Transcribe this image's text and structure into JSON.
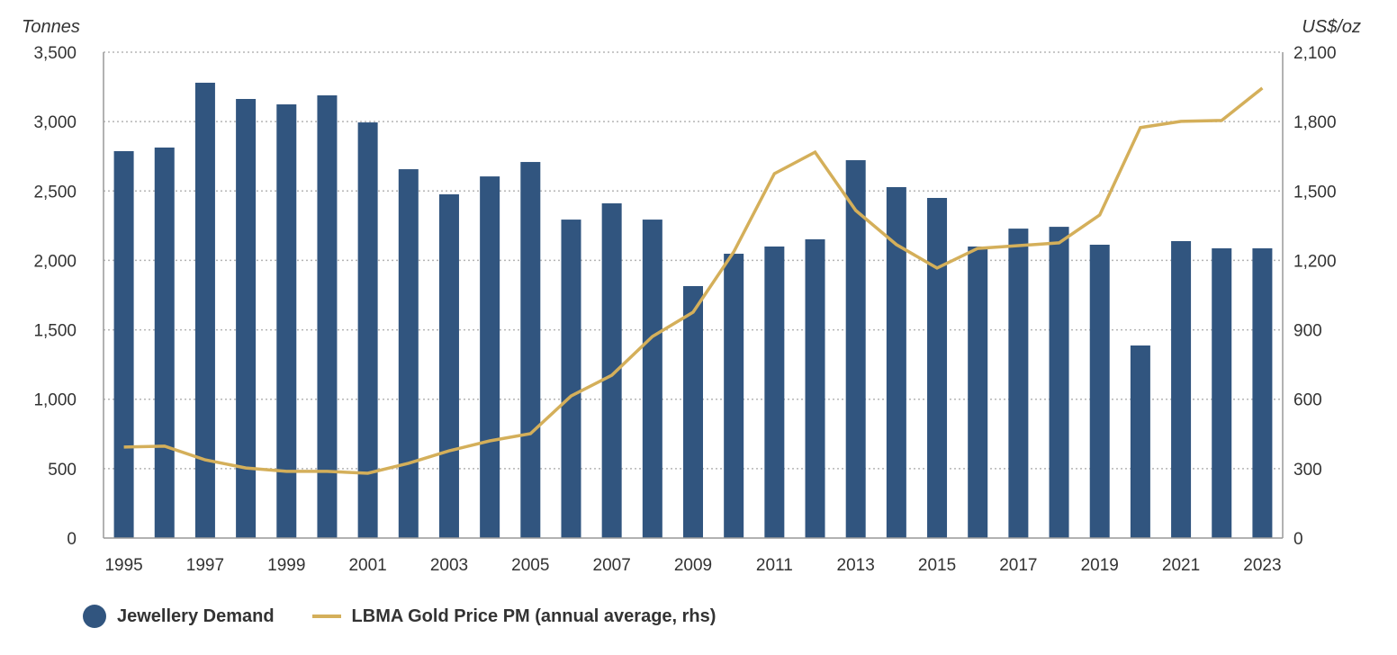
{
  "chart_data": {
    "type": "bar",
    "title": "",
    "x": [
      1995,
      1996,
      1997,
      1998,
      1999,
      2000,
      2001,
      2002,
      2003,
      2004,
      2005,
      2006,
      2007,
      2008,
      2009,
      2010,
      2011,
      2012,
      2013,
      2014,
      2015,
      2016,
      2017,
      2018,
      2019,
      2020,
      2021,
      2022,
      2023
    ],
    "x_tick_labels": [
      "1995",
      "1997",
      "1999",
      "2001",
      "2003",
      "2005",
      "2007",
      "2009",
      "2011",
      "2013",
      "2015",
      "2017",
      "2019",
      "2021",
      "2023"
    ],
    "ylabel_left": "Tonnes",
    "ylabel_right": "US$/oz",
    "ylim_left": [
      0,
      3500
    ],
    "ylim_right": [
      0,
      2100
    ],
    "yticks_left": [
      "0",
      "500",
      "1,000",
      "1,500",
      "2,000",
      "2,500",
      "3,000",
      "3,500"
    ],
    "yticks_right": [
      "0",
      "300",
      "600",
      "900",
      "1,200",
      "1,500",
      "1,800",
      "2,100"
    ],
    "grid": "horizontal dotted",
    "legend_position": "bottom-left",
    "series": [
      {
        "name": "Jewellery Demand",
        "type": "bar",
        "axis": "left",
        "color": "#31557f",
        "values": [
          2787,
          2813,
          3280,
          3163,
          3124,
          3189,
          2994,
          2657,
          2476,
          2605,
          2709,
          2294,
          2411,
          2294,
          1815,
          2048,
          2100,
          2152,
          2722,
          2528,
          2450,
          2100,
          2229,
          2242,
          2113,
          1387,
          2139,
          2087,
          2087
        ]
      },
      {
        "name": "LBMA Gold Price PM (annual average, rhs)",
        "type": "line",
        "axis": "right",
        "color": "#d4af5a",
        "values": [
          393,
          397,
          338,
          303,
          288,
          288,
          280,
          323,
          377,
          420,
          451,
          614,
          704,
          871,
          976,
          1237,
          1575,
          1668,
          1416,
          1268,
          1167,
          1252,
          1264,
          1276,
          1396,
          1774,
          1801,
          1805,
          1945
        ]
      }
    ]
  }
}
